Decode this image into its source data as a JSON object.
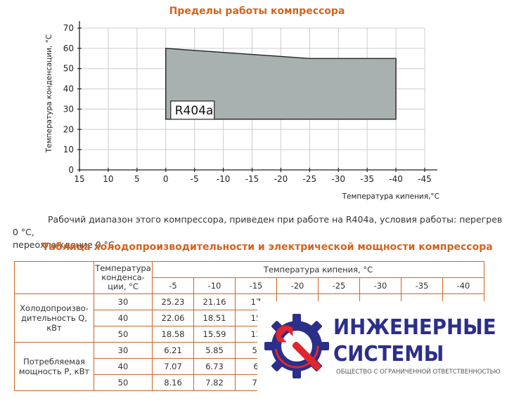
{
  "chart_title": "Пределы работы компрессора",
  "chart_data": {
    "type": "area",
    "ylabel": "Температура конденсации, °С",
    "xlabel": "Температура кипения,°С",
    "x_ticks": [
      "15",
      "10",
      "5",
      "0",
      "-5",
      "-10",
      "-15",
      "-20",
      "-25",
      "-30",
      "-35",
      "-40",
      "-45"
    ],
    "y_ticks": [
      "0",
      "10",
      "20",
      "30",
      "40",
      "50",
      "60",
      "70"
    ],
    "xlim": [
      15,
      -45
    ],
    "ylim": [
      0,
      70
    ],
    "grid": true,
    "envelope_label": "R404a",
    "envelope_points": [
      {
        "x": 0,
        "y": 60
      },
      {
        "x": -25,
        "y": 55
      },
      {
        "x": -40,
        "y": 55
      },
      {
        "x": -40,
        "y": 25
      },
      {
        "x": 0,
        "y": 25
      }
    ],
    "colors": {
      "fill": "#a9b0b0",
      "grid": "#cccccc",
      "outline": "#222222"
    }
  },
  "paragraph": {
    "line1": "Рабочий диапазон этого компрессора, приведен при работе на R404a, условия работы: перегрев 0 °С,",
    "line2": "переохлаждение 0 °С."
  },
  "table": {
    "title": "Таблица холодопроизводительности и электрической мощности компрессора",
    "header_tc": "Температура конденса-ции, °С",
    "header_te": "Температура кипения, °С",
    "te_values": [
      "-5",
      "-10",
      "-15",
      "-20",
      "-25",
      "-30",
      "-35",
      "-40"
    ],
    "groups": [
      {
        "label": "Холодопроизво-дительность Q, кВт",
        "rows": [
          {
            "tc": "30",
            "values": [
              "25.23",
              "21.16",
              "17"
            ]
          },
          {
            "tc": "40",
            "values": [
              "22.06",
              "18.51",
              "15"
            ]
          },
          {
            "tc": "50",
            "values": [
              "18.58",
              "15.59",
              "13"
            ]
          }
        ]
      },
      {
        "label": "Потребляемая мощность Р, кВт",
        "rows": [
          {
            "tc": "30",
            "values": [
              "6.21",
              "5.85",
              "5."
            ]
          },
          {
            "tc": "40",
            "values": [
              "7.07",
              "6.73",
              "6"
            ]
          },
          {
            "tc": "50",
            "values": [
              "8.16",
              "7.82",
              "7."
            ]
          }
        ]
      }
    ]
  },
  "logo": {
    "line1": "ИНЖЕНЕРНЫЕ",
    "line2": "СИСТЕМЫ",
    "sub": "ОБЩЕСТВО С ОГРАНИЧЕННОЙ ОТВЕТСТВЕННОСТЬЮ",
    "colors": {
      "primary": "#2b2f8a",
      "accent": "#e0262d"
    }
  }
}
